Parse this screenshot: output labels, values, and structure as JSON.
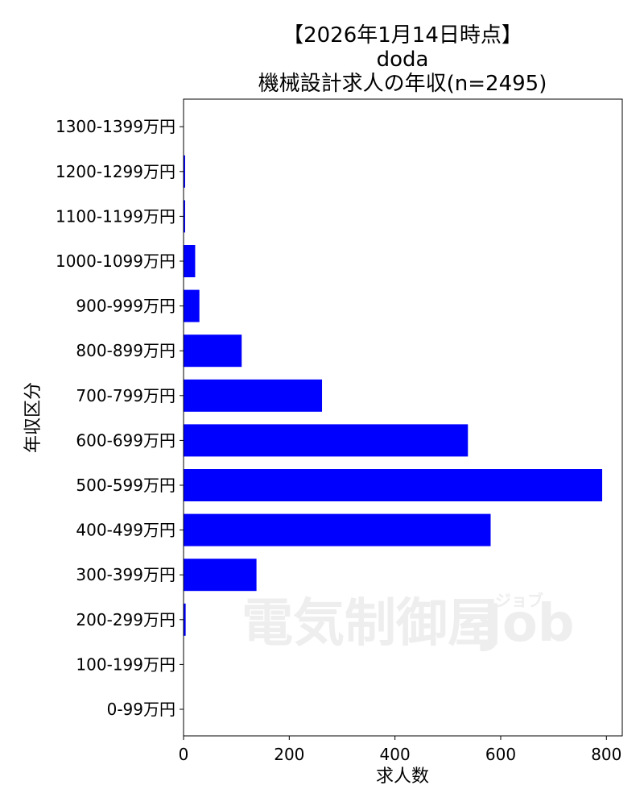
{
  "chart_data": {
    "type": "bar",
    "orientation": "horizontal",
    "title_lines": [
      "【2026年1月14日時点】",
      "doda",
      "機械設計求人の年収(n=2495)"
    ],
    "xlabel": "求人数",
    "ylabel": "年収区分",
    "categories": [
      "0-99万円",
      "100-199万円",
      "200-299万円",
      "300-399万円",
      "400-499万円",
      "500-599万円",
      "600-699万円",
      "700-799万円",
      "800-899万円",
      "900-999万円",
      "1000-1099万円",
      "1100-1199万円",
      "1200-1299万円",
      "1300-1399万円"
    ],
    "values": [
      0,
      0,
      4,
      138,
      581,
      792,
      538,
      262,
      110,
      30,
      22,
      3,
      3,
      0
    ],
    "xlim": [
      0,
      830
    ],
    "xticks": [
      0,
      200,
      400,
      600,
      800
    ],
    "bar_color": "#0000ff",
    "grid": false,
    "watermark": {
      "main": "電気制御屋",
      "job": "Job",
      "kana": "ジョブ"
    }
  }
}
